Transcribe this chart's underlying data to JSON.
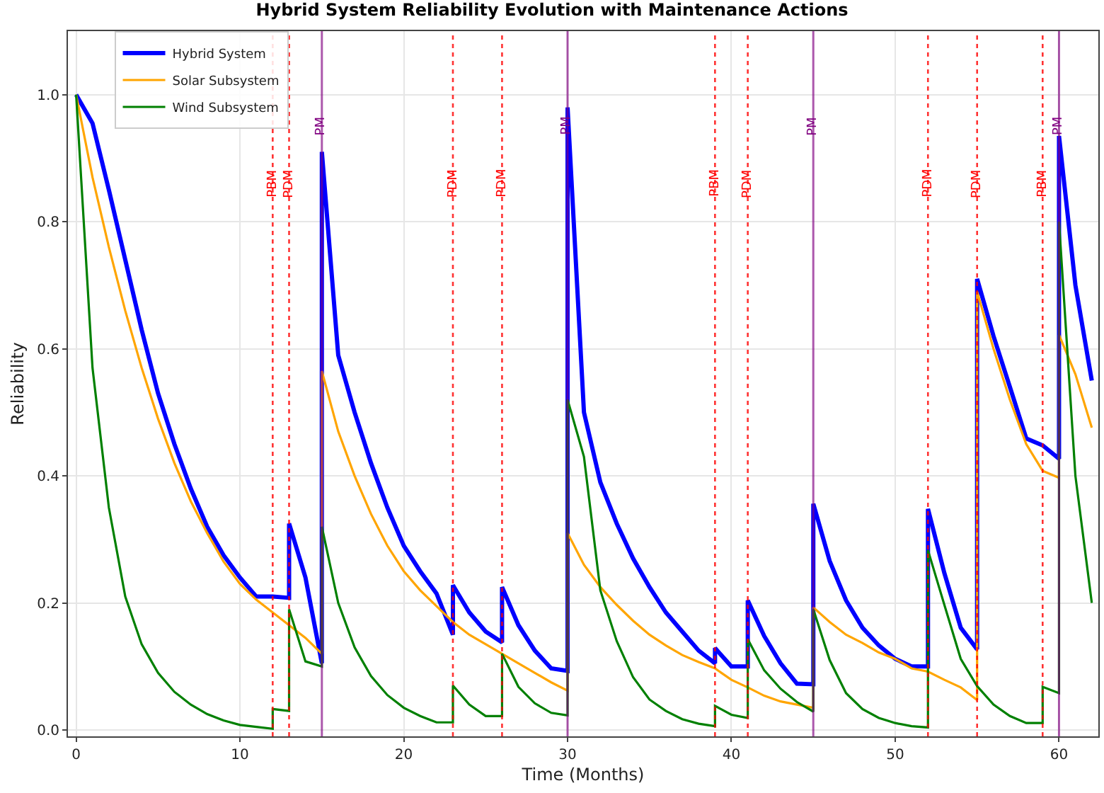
{
  "chart_data": {
    "type": "line",
    "title": "Hybrid System Reliability Evolution with Maintenance Actions",
    "xlabel": "Time (Months)",
    "ylabel": "Reliability",
    "series": [
      {
        "name": "Hybrid System",
        "color": "#0000ff",
        "x": [
          0,
          1,
          2,
          3,
          4,
          5,
          6,
          7,
          8,
          9,
          10,
          11,
          12,
          13,
          13,
          14,
          15,
          15,
          16,
          17,
          18,
          19,
          20,
          21,
          22,
          23,
          23,
          24,
          25,
          26,
          26,
          27,
          28,
          29,
          30,
          30,
          31,
          32,
          33,
          34,
          35,
          36,
          37,
          38,
          39,
          39,
          40,
          41,
          41,
          42,
          43,
          44,
          45,
          45,
          46,
          47,
          48,
          49,
          50,
          51,
          52,
          52,
          53,
          54,
          55,
          55,
          56,
          57,
          58,
          59,
          60,
          60,
          61,
          62
        ],
        "values": [
          1.0,
          0.955,
          0.85,
          0.74,
          0.63,
          0.53,
          0.45,
          0.38,
          0.32,
          0.275,
          0.24,
          0.21,
          0.21,
          0.208,
          0.325,
          0.24,
          0.105,
          0.91,
          0.59,
          0.5,
          0.42,
          0.35,
          0.29,
          0.25,
          0.215,
          0.15,
          0.228,
          0.185,
          0.155,
          0.138,
          0.225,
          0.165,
          0.125,
          0.097,
          0.093,
          0.98,
          0.5,
          0.39,
          0.325,
          0.27,
          0.225,
          0.185,
          0.155,
          0.125,
          0.105,
          0.129,
          0.1,
          0.1,
          0.204,
          0.148,
          0.105,
          0.073,
          0.072,
          0.356,
          0.266,
          0.204,
          0.161,
          0.133,
          0.112,
          0.1,
          0.1,
          0.348,
          0.247,
          0.161,
          0.127,
          0.71,
          0.62,
          0.54,
          0.459,
          0.448,
          0.427,
          0.935,
          0.7,
          0.55
        ]
      },
      {
        "name": "Solar Subsystem",
        "color": "#ffa500",
        "x": [
          0,
          1,
          2,
          3,
          4,
          5,
          6,
          7,
          8,
          9,
          10,
          11,
          12,
          13,
          14,
          15,
          15,
          16,
          17,
          18,
          19,
          20,
          21,
          22,
          23,
          24,
          25,
          26,
          27,
          28,
          29,
          30,
          30,
          31,
          32,
          33,
          34,
          35,
          36,
          37,
          38,
          39,
          40,
          41,
          42,
          43,
          44,
          45,
          45,
          46,
          47,
          48,
          49,
          50,
          51,
          52,
          53,
          54,
          55,
          55,
          56,
          57,
          58,
          59,
          60,
          60,
          61,
          62
        ],
        "values": [
          1.0,
          0.87,
          0.76,
          0.66,
          0.57,
          0.49,
          0.42,
          0.36,
          0.31,
          0.265,
          0.23,
          0.205,
          0.185,
          0.165,
          0.145,
          0.12,
          0.565,
          0.47,
          0.4,
          0.34,
          0.29,
          0.25,
          0.22,
          0.195,
          0.17,
          0.15,
          0.135,
          0.12,
          0.105,
          0.09,
          0.075,
          0.062,
          0.31,
          0.26,
          0.225,
          0.197,
          0.172,
          0.15,
          0.133,
          0.118,
          0.107,
          0.097,
          0.079,
          0.067,
          0.054,
          0.045,
          0.04,
          0.035,
          0.193,
          0.17,
          0.15,
          0.137,
          0.122,
          0.112,
          0.097,
          0.092,
          0.079,
          0.067,
          0.047,
          0.69,
          0.6,
          0.52,
          0.45,
          0.408,
          0.397,
          0.622,
          0.56,
          0.476
        ]
      },
      {
        "name": "Wind Subsystem",
        "color": "#008000",
        "x": [
          0,
          1,
          2,
          3,
          4,
          5,
          6,
          7,
          8,
          9,
          10,
          11,
          12,
          12,
          13,
          13,
          14,
          15,
          15,
          16,
          17,
          18,
          19,
          20,
          21,
          22,
          23,
          23,
          24,
          25,
          26,
          26,
          27,
          28,
          29,
          30,
          30,
          31,
          32,
          33,
          34,
          35,
          36,
          37,
          38,
          39,
          39,
          40,
          41,
          41,
          42,
          43,
          44,
          45,
          45,
          46,
          47,
          48,
          49,
          50,
          51,
          52,
          52,
          53,
          54,
          55,
          56,
          57,
          58,
          59,
          59,
          60,
          60,
          61,
          62
        ],
        "values": [
          1.0,
          0.57,
          0.35,
          0.21,
          0.135,
          0.09,
          0.06,
          0.04,
          0.025,
          0.015,
          0.008,
          0.005,
          0.002,
          0.033,
          0.03,
          0.19,
          0.108,
          0.1,
          0.32,
          0.2,
          0.13,
          0.085,
          0.055,
          0.035,
          0.022,
          0.012,
          0.012,
          0.07,
          0.04,
          0.022,
          0.022,
          0.12,
          0.068,
          0.042,
          0.027,
          0.023,
          0.52,
          0.43,
          0.22,
          0.14,
          0.083,
          0.048,
          0.03,
          0.017,
          0.01,
          0.006,
          0.038,
          0.024,
          0.019,
          0.143,
          0.094,
          0.065,
          0.044,
          0.029,
          0.19,
          0.11,
          0.058,
          0.033,
          0.019,
          0.011,
          0.006,
          0.004,
          0.283,
          0.197,
          0.112,
          0.069,
          0.04,
          0.022,
          0.011,
          0.011,
          0.068,
          0.058,
          0.8,
          0.4,
          0.2
        ]
      }
    ],
    "ref_lines": [
      {
        "axis": "x",
        "value": 12,
        "label": "PBM",
        "color": "#ff0000",
        "line_style": "dotted"
      },
      {
        "axis": "x",
        "value": 13,
        "label": "PDM",
        "color": "#ff0000",
        "line_style": "dotted"
      },
      {
        "axis": "x",
        "value": 15,
        "label": "PM",
        "color": "#800080",
        "line_style": "solid"
      },
      {
        "axis": "x",
        "value": 23,
        "label": "PDM",
        "color": "#ff0000",
        "line_style": "dotted"
      },
      {
        "axis": "x",
        "value": 26,
        "label": "PDM",
        "color": "#ff0000",
        "line_style": "dotted"
      },
      {
        "axis": "x",
        "value": 30,
        "label": "PM",
        "color": "#800080",
        "line_style": "solid"
      },
      {
        "axis": "x",
        "value": 39,
        "label": "PBM",
        "color": "#ff0000",
        "line_style": "dotted"
      },
      {
        "axis": "x",
        "value": 41,
        "label": "PDM",
        "color": "#ff0000",
        "line_style": "dotted"
      },
      {
        "axis": "x",
        "value": 45,
        "label": "PM",
        "color": "#800080",
        "line_style": "solid"
      },
      {
        "axis": "x",
        "value": 52,
        "label": "PDM",
        "color": "#ff0000",
        "line_style": "dotted"
      },
      {
        "axis": "x",
        "value": 55,
        "label": "PDM",
        "color": "#ff0000",
        "line_style": "dotted"
      },
      {
        "axis": "x",
        "value": 59,
        "label": "PBM",
        "color": "#ff0000",
        "line_style": "dotted"
      },
      {
        "axis": "x",
        "value": 60,
        "label": "PM",
        "color": "#800080",
        "line_style": "solid"
      }
    ],
    "xlim": [
      -0.5,
      62.4
    ],
    "xticks": [
      0,
      10,
      20,
      30,
      40,
      50,
      60
    ],
    "ylim": [
      -0.01,
      1.1
    ],
    "yticks": [
      {
        "value": 0,
        "label": "0.0"
      },
      {
        "value": 0.2,
        "label": "0.2"
      },
      {
        "value": 0.4,
        "label": "0.4"
      },
      {
        "value": 0.6,
        "label": "0.6"
      },
      {
        "value": 0.8,
        "label": "0.8"
      },
      {
        "value": 1,
        "label": "1.0"
      }
    ],
    "grid": true,
    "legend": "top left",
    "marker": "none",
    "line_style": "solid"
  }
}
